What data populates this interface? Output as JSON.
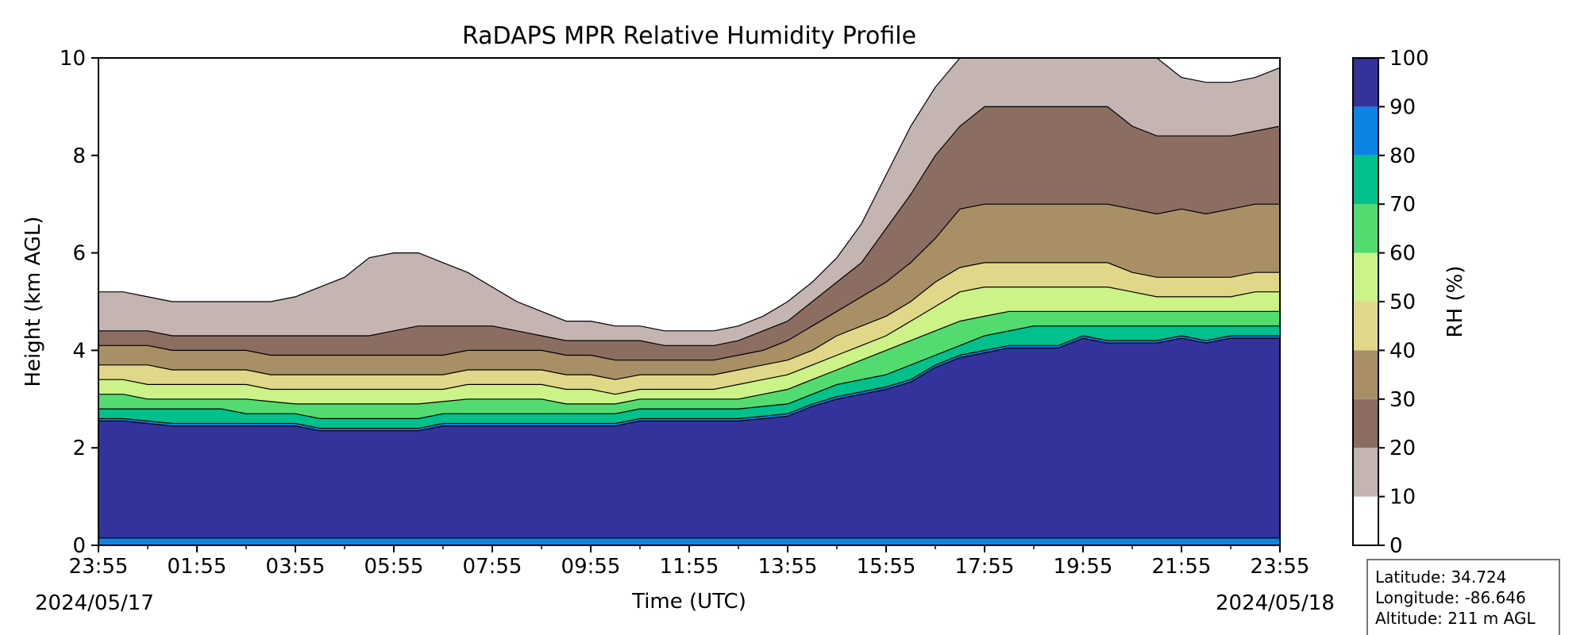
{
  "chart_data": {
    "type": "heatmap",
    "title": "RaDAPS MPR Relative Humidity Profile",
    "xlabel": "Time (UTC)",
    "ylabel": "Height (km AGL)",
    "x_ticks": [
      "23:55",
      "01:55",
      "03:55",
      "05:55",
      "07:55",
      "09:55",
      "11:55",
      "13:55",
      "15:55",
      "17:55",
      "19:55",
      "21:55",
      "23:55"
    ],
    "x_hours": [
      0,
      2,
      4,
      6,
      8,
      10,
      12,
      14,
      16,
      18,
      20,
      22,
      24
    ],
    "start_date": "2024/05/17",
    "end_date": "2024/05/18",
    "ylim": [
      0,
      10
    ],
    "y_ticks": [
      0,
      2,
      4,
      6,
      8,
      10
    ],
    "colorbar": {
      "label": "RH (%)",
      "levels": [
        0,
        10,
        20,
        30,
        40,
        50,
        60,
        70,
        80,
        90,
        100
      ],
      "colors": [
        "#ffffff",
        "#c4b5b2",
        "#8b6d62",
        "#a88f66",
        "#e0d888",
        "#ccf288",
        "#52dc70",
        "#00c08b",
        "#0c84e4",
        "#33339b"
      ]
    },
    "boundaries": {
      "t": [
        0,
        0.5,
        1,
        1.5,
        2,
        2.5,
        3,
        3.5,
        4,
        4.5,
        5,
        5.5,
        6,
        6.5,
        7,
        7.5,
        8,
        8.5,
        9,
        9.5,
        10,
        10.5,
        11,
        11.5,
        12,
        12.5,
        13,
        13.5,
        14,
        14.5,
        15,
        15.5,
        16,
        16.5,
        17,
        17.5,
        18,
        18.5,
        19,
        19.5,
        20,
        20.5,
        21,
        21.5,
        22,
        22.5,
        23,
        23.5,
        24
      ],
      "rh90": [
        2.6,
        2.6,
        2.55,
        2.5,
        2.5,
        2.5,
        2.5,
        2.5,
        2.5,
        2.4,
        2.4,
        2.4,
        2.4,
        2.4,
        2.5,
        2.5,
        2.5,
        2.5,
        2.5,
        2.5,
        2.5,
        2.5,
        2.6,
        2.6,
        2.6,
        2.6,
        2.6,
        2.65,
        2.7,
        2.9,
        3.05,
        3.15,
        3.25,
        3.4,
        3.7,
        3.9,
        4.0,
        4.1,
        4.1,
        4.1,
        4.3,
        4.2,
        4.2,
        4.2,
        4.3,
        4.2,
        4.3,
        4.3,
        4.3
      ],
      "rh80": [
        2.8,
        2.8,
        2.8,
        2.8,
        2.8,
        2.8,
        2.7,
        2.7,
        2.7,
        2.6,
        2.6,
        2.6,
        2.6,
        2.6,
        2.7,
        2.7,
        2.7,
        2.7,
        2.7,
        2.7,
        2.7,
        2.7,
        2.8,
        2.8,
        2.8,
        2.8,
        2.8,
        2.85,
        2.9,
        3.1,
        3.3,
        3.4,
        3.5,
        3.7,
        3.9,
        4.1,
        4.3,
        4.4,
        4.5,
        4.5,
        4.5,
        4.5,
        4.5,
        4.5,
        4.5,
        4.5,
        4.5,
        4.5,
        4.5
      ],
      "rh70": [
        3.1,
        3.1,
        3.0,
        3.0,
        3.0,
        3.0,
        3.0,
        2.95,
        2.9,
        2.9,
        2.9,
        2.9,
        2.9,
        2.9,
        2.95,
        3.0,
        3.0,
        3.0,
        3.0,
        2.9,
        2.9,
        2.9,
        3.0,
        3.0,
        3.0,
        3.0,
        3.0,
        3.1,
        3.2,
        3.4,
        3.6,
        3.8,
        4.0,
        4.2,
        4.4,
        4.6,
        4.7,
        4.8,
        4.8,
        4.8,
        4.8,
        4.8,
        4.8,
        4.8,
        4.8,
        4.8,
        4.8,
        4.8,
        4.8
      ],
      "rh60": [
        3.4,
        3.4,
        3.3,
        3.3,
        3.3,
        3.3,
        3.3,
        3.2,
        3.2,
        3.2,
        3.2,
        3.2,
        3.2,
        3.2,
        3.2,
        3.3,
        3.3,
        3.3,
        3.3,
        3.2,
        3.2,
        3.1,
        3.2,
        3.2,
        3.2,
        3.2,
        3.3,
        3.4,
        3.5,
        3.7,
        3.9,
        4.1,
        4.3,
        4.6,
        4.9,
        5.2,
        5.3,
        5.3,
        5.3,
        5.3,
        5.3,
        5.3,
        5.2,
        5.1,
        5.1,
        5.1,
        5.1,
        5.2,
        5.2
      ],
      "rh50": [
        3.7,
        3.7,
        3.7,
        3.6,
        3.6,
        3.6,
        3.6,
        3.5,
        3.5,
        3.5,
        3.5,
        3.5,
        3.5,
        3.5,
        3.5,
        3.6,
        3.6,
        3.6,
        3.6,
        3.5,
        3.5,
        3.4,
        3.5,
        3.5,
        3.5,
        3.5,
        3.6,
        3.7,
        3.8,
        4.0,
        4.3,
        4.5,
        4.7,
        5.0,
        5.4,
        5.7,
        5.8,
        5.8,
        5.8,
        5.8,
        5.8,
        5.8,
        5.6,
        5.5,
        5.5,
        5.5,
        5.5,
        5.6,
        5.6
      ],
      "rh40": [
        4.1,
        4.1,
        4.1,
        4.0,
        4.0,
        4.0,
        4.0,
        3.9,
        3.9,
        3.9,
        3.9,
        3.9,
        3.9,
        3.9,
        3.9,
        4.0,
        4.0,
        4.0,
        4.0,
        3.9,
        3.9,
        3.8,
        3.8,
        3.8,
        3.8,
        3.8,
        3.9,
        4.0,
        4.2,
        4.5,
        4.8,
        5.1,
        5.4,
        5.8,
        6.3,
        6.9,
        7.0,
        7.0,
        7.0,
        7.0,
        7.0,
        7.0,
        6.9,
        6.8,
        6.9,
        6.8,
        6.9,
        7.0,
        7.0
      ],
      "rh30": [
        4.4,
        4.4,
        4.4,
        4.3,
        4.3,
        4.3,
        4.3,
        4.3,
        4.3,
        4.3,
        4.3,
        4.3,
        4.4,
        4.5,
        4.5,
        4.5,
        4.5,
        4.4,
        4.3,
        4.2,
        4.2,
        4.2,
        4.2,
        4.1,
        4.1,
        4.1,
        4.2,
        4.4,
        4.6,
        5.0,
        5.4,
        5.8,
        6.5,
        7.2,
        8.0,
        8.6,
        9.0,
        9.0,
        9.0,
        9.0,
        9.0,
        9.0,
        8.6,
        8.4,
        8.4,
        8.4,
        8.4,
        8.5,
        8.6
      ],
      "rh20": [
        5.2,
        5.2,
        5.1,
        5.0,
        5.0,
        5.0,
        5.0,
        5.0,
        5.1,
        5.3,
        5.5,
        5.9,
        6.0,
        6.0,
        5.8,
        5.6,
        5.3,
        5.0,
        4.8,
        4.6,
        4.6,
        4.5,
        4.5,
        4.4,
        4.4,
        4.4,
        4.5,
        4.7,
        5.0,
        5.4,
        5.9,
        6.6,
        7.6,
        8.6,
        9.4,
        10,
        10,
        10,
        10,
        10,
        10,
        10,
        10,
        10,
        9.6,
        9.5,
        9.5,
        9.6,
        9.8
      ]
    },
    "info_box": {
      "latitude": "Latitude: 34.724",
      "longitude": "Longitude: -86.646",
      "altitude": "Altitude: 211 m AGL"
    }
  }
}
